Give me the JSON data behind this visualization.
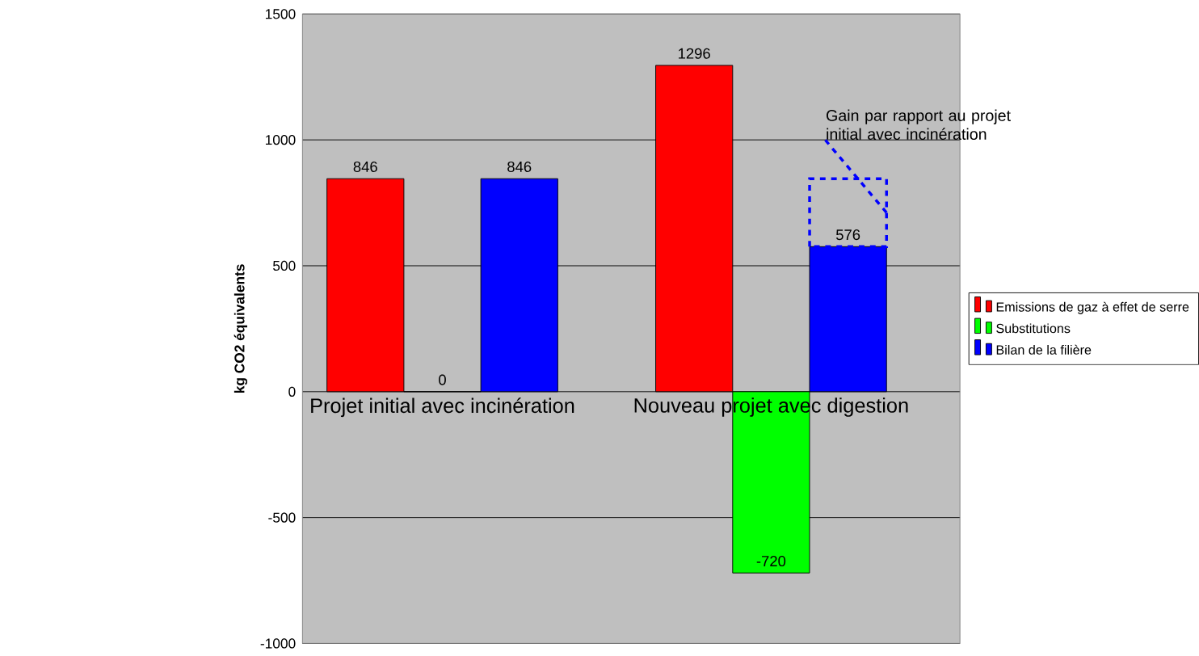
{
  "chart_data": {
    "type": "bar",
    "categories": [
      "Projet initial avec incinération",
      "Nouveau projet avec digestion"
    ],
    "series": [
      {
        "name": "Emissions de gaz à effet de serre",
        "color": "#ff0000",
        "values": [
          846,
          1296
        ]
      },
      {
        "name": "Substitutions",
        "color": "#00ff00",
        "values": [
          0,
          -720
        ]
      },
      {
        "name": "Bilan de la filière",
        "color": "#0000ff",
        "values": [
          846,
          576
        ]
      }
    ],
    "ylabel": "kg CO2 équivalents",
    "ylim": [
      -1000,
      1500
    ],
    "yticks": [
      -1000,
      -500,
      0,
      500,
      1000,
      1500
    ],
    "grid": "y",
    "legend": "right",
    "data_labels": true,
    "annotations": [
      "Gain par rapport au projet initial avec incinération"
    ]
  }
}
